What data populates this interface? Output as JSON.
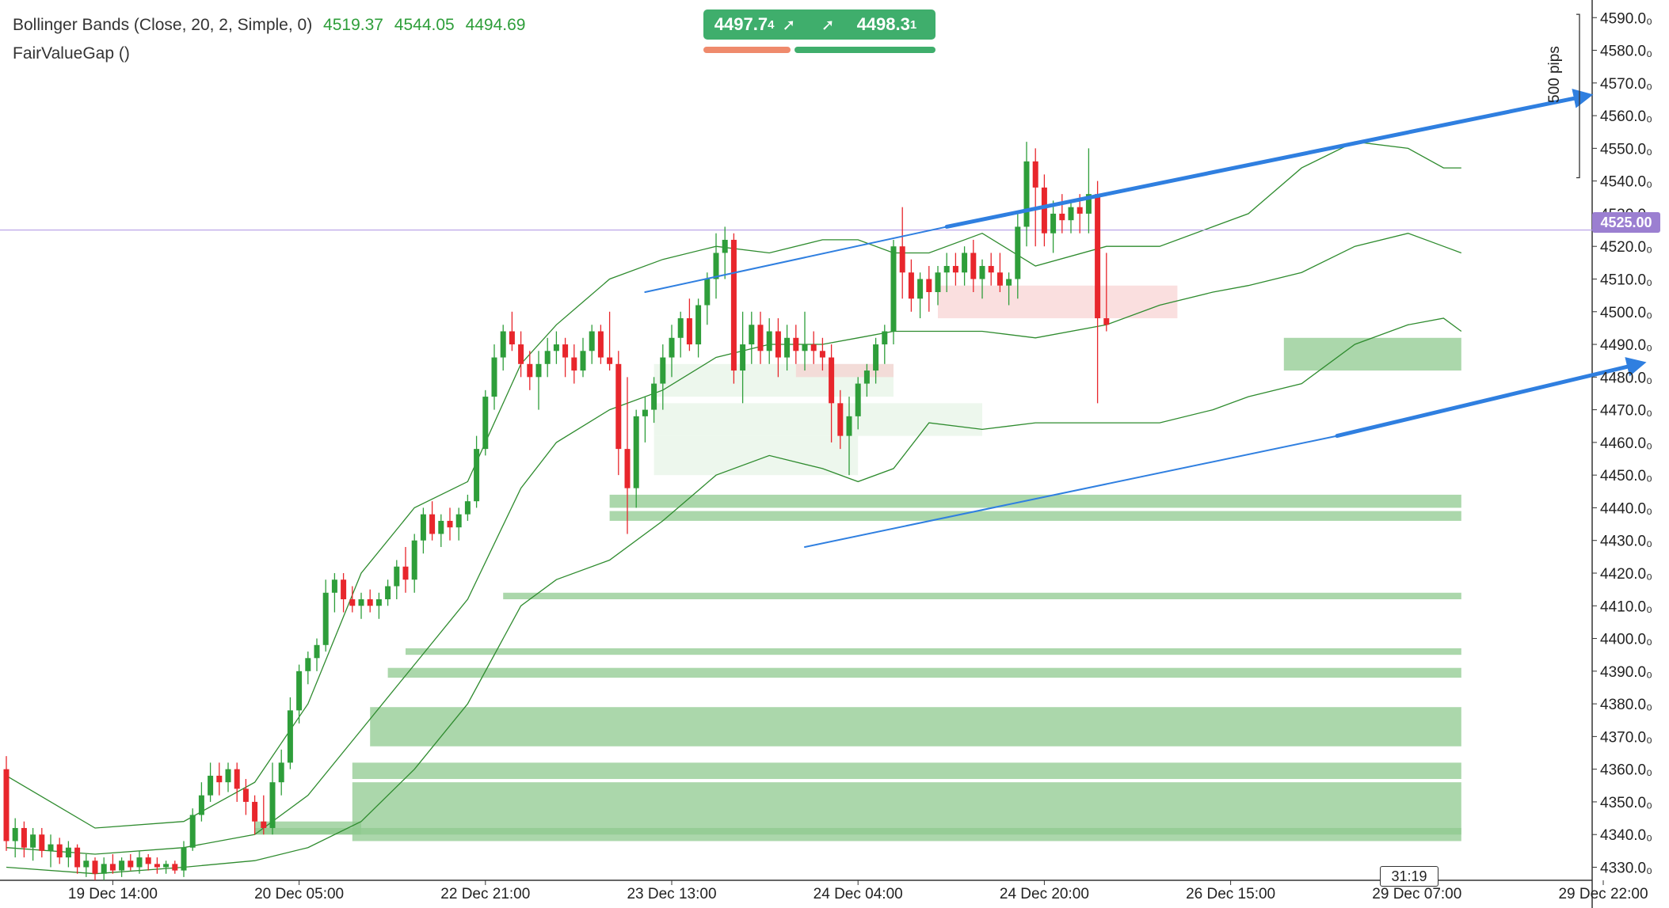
{
  "legend": {
    "bollinger": {
      "label": "Bollinger Bands (Close, 20, 2, Simple, 0)",
      "v1": "4519.37",
      "v2": "4544.05",
      "v3": "4494.69"
    },
    "fvg": {
      "label": "FairValueGap ()"
    }
  },
  "trade": {
    "sell_price": "4497.7",
    "sell_sub": "4",
    "buy_price": "4498.3",
    "buy_sub": "1",
    "arrow": "➚"
  },
  "current_price_label": "4525.00",
  "timer": "31:19",
  "pips_label": "500 pips",
  "colors": {
    "up": "#2e9e3a",
    "down": "#e8262c",
    "band": "#2e8b2e",
    "trend": "#2f7fe0",
    "fvg_green": "#8fc98f",
    "fvg_red": "#f6c9c9",
    "price_line": "#b69ee6"
  },
  "chart_data": {
    "type": "candlestick",
    "ylim": [
      4326,
      4592
    ],
    "y_ticks": [
      {
        "v": 4590,
        "label": "4590.0₀"
      },
      {
        "v": 4580,
        "label": "4580.0₀"
      },
      {
        "v": 4570,
        "label": "4570.0₀"
      },
      {
        "v": 4560,
        "label": "4560.0₀"
      },
      {
        "v": 4550,
        "label": "4550.0₀"
      },
      {
        "v": 4540,
        "label": "4540.0₀"
      },
      {
        "v": 4530,
        "label": "4530.0₀"
      },
      {
        "v": 4520,
        "label": "4520.0₀"
      },
      {
        "v": 4510,
        "label": "4510.0₀"
      },
      {
        "v": 4500,
        "label": "4500.0₀"
      },
      {
        "v": 4490,
        "label": "4490.0₀"
      },
      {
        "v": 4480,
        "label": "4480.0₀"
      },
      {
        "v": 4470,
        "label": "4470.0₀"
      },
      {
        "v": 4460,
        "label": "4460.0₀"
      },
      {
        "v": 4450,
        "label": "4450.0₀"
      },
      {
        "v": 4440,
        "label": "4440.0₀"
      },
      {
        "v": 4430,
        "label": "4430.0₀"
      },
      {
        "v": 4420,
        "label": "4420.0₀"
      },
      {
        "v": 4410,
        "label": "4410.0₀"
      },
      {
        "v": 4400,
        "label": "4400.0₀"
      },
      {
        "v": 4390,
        "label": "4390.0₀"
      },
      {
        "v": 4380,
        "label": "4380.0₀"
      },
      {
        "v": 4370,
        "label": "4370.0₀"
      },
      {
        "v": 4360,
        "label": "4360.0₀"
      },
      {
        "v": 4350,
        "label": "4350.0₀"
      },
      {
        "v": 4340,
        "label": "4340.0₀"
      },
      {
        "v": 4330,
        "label": "4330.0₀"
      }
    ],
    "x_ticks": [
      {
        "i": 12,
        "label": "19 Dec 14:00"
      },
      {
        "i": 33,
        "label": "20 Dec 05:00"
      },
      {
        "i": 54,
        "label": "22 Dec 21:00"
      },
      {
        "i": 75,
        "label": "23 Dec 13:00"
      },
      {
        "i": 96,
        "label": "24 Dec 04:00"
      },
      {
        "i": 117,
        "label": "24 Dec 20:00"
      },
      {
        "i": 138,
        "label": "26 Dec 15:00"
      },
      {
        "i": 159,
        "label": "29 Dec 07:00"
      },
      {
        "i": 180,
        "label": "29 Dec 22:00"
      }
    ],
    "candles": [
      [
        4360,
        4364,
        4335,
        4338
      ],
      [
        4338,
        4345,
        4333,
        4342
      ],
      [
        4342,
        4344,
        4333,
        4336
      ],
      [
        4336,
        4342,
        4332,
        4340
      ],
      [
        4340,
        4342,
        4333,
        4335
      ],
      [
        4335,
        4340,
        4330,
        4337
      ],
      [
        4337,
        4339,
        4331,
        4333
      ],
      [
        4333,
        4338,
        4330,
        4336
      ],
      [
        4336,
        4337,
        4328,
        4330
      ],
      [
        4330,
        4334,
        4327,
        4332
      ],
      [
        4332,
        4333,
        4326,
        4328
      ],
      [
        4328,
        4333,
        4326,
        4331
      ],
      [
        4331,
        4334,
        4328,
        4329
      ],
      [
        4329,
        4333,
        4327,
        4332
      ],
      [
        4332,
        4334,
        4329,
        4330
      ],
      [
        4330,
        4335,
        4328,
        4333
      ],
      [
        4333,
        4334,
        4329,
        4331
      ],
      [
        4331,
        4333,
        4328,
        4330
      ],
      [
        4330,
        4332,
        4328,
        4331
      ],
      [
        4331,
        4332,
        4328,
        4329
      ],
      [
        4329,
        4338,
        4327,
        4336
      ],
      [
        4336,
        4348,
        4335,
        4346
      ],
      [
        4346,
        4356,
        4344,
        4352
      ],
      [
        4352,
        4362,
        4350,
        4358
      ],
      [
        4358,
        4362,
        4352,
        4356
      ],
      [
        4356,
        4362,
        4353,
        4360
      ],
      [
        4360,
        4362,
        4350,
        4354
      ],
      [
        4354,
        4357,
        4346,
        4350
      ],
      [
        4350,
        4352,
        4340,
        4344
      ],
      [
        4344,
        4352,
        4340,
        4342
      ],
      [
        4342,
        4362,
        4340,
        4356
      ],
      [
        4356,
        4366,
        4352,
        4362
      ],
      [
        4362,
        4382,
        4360,
        4378
      ],
      [
        4378,
        4392,
        4374,
        4390
      ],
      [
        4390,
        4396,
        4386,
        4394
      ],
      [
        4394,
        4400,
        4390,
        4398
      ],
      [
        4398,
        4418,
        4396,
        4414
      ],
      [
        4414,
        4420,
        4408,
        4418
      ],
      [
        4418,
        4420,
        4408,
        4412
      ],
      [
        4412,
        4416,
        4408,
        4410
      ],
      [
        4410,
        4414,
        4406,
        4412
      ],
      [
        4412,
        4415,
        4408,
        4410
      ],
      [
        4410,
        4414,
        4406,
        4412
      ],
      [
        4412,
        4418,
        4410,
        4416
      ],
      [
        4416,
        4424,
        4412,
        4422
      ],
      [
        4422,
        4428,
        4414,
        4418
      ],
      [
        4418,
        4432,
        4414,
        4430
      ],
      [
        4430,
        4440,
        4426,
        4438
      ],
      [
        4438,
        4442,
        4430,
        4432
      ],
      [
        4432,
        4438,
        4428,
        4436
      ],
      [
        4436,
        4440,
        4430,
        4434
      ],
      [
        4434,
        4440,
        4430,
        4438
      ],
      [
        4438,
        4444,
        4436,
        4442
      ],
      [
        4442,
        4462,
        4440,
        4458
      ],
      [
        4458,
        4476,
        4456,
        4474
      ],
      [
        4474,
        4490,
        4470,
        4486
      ],
      [
        4486,
        4496,
        4482,
        4494
      ],
      [
        4494,
        4500,
        4488,
        4490
      ],
      [
        4490,
        4494,
        4480,
        4484
      ],
      [
        4484,
        4488,
        4476,
        4480
      ],
      [
        4480,
        4488,
        4470,
        4484
      ],
      [
        4484,
        4492,
        4480,
        4488
      ],
      [
        4488,
        4494,
        4484,
        4490
      ],
      [
        4490,
        4492,
        4480,
        4486
      ],
      [
        4486,
        4490,
        4478,
        4482
      ],
      [
        4482,
        4492,
        4480,
        4488
      ],
      [
        4488,
        4496,
        4484,
        4494
      ],
      [
        4494,
        4496,
        4484,
        4486
      ],
      [
        4486,
        4500,
        4482,
        4484
      ],
      [
        4484,
        4488,
        4450,
        4458
      ],
      [
        4458,
        4480,
        4432,
        4446
      ],
      [
        4446,
        4470,
        4440,
        4468
      ],
      [
        4468,
        4474,
        4460,
        4470
      ],
      [
        4470,
        4480,
        4466,
        4478
      ],
      [
        4478,
        4490,
        4470,
        4486
      ],
      [
        4486,
        4496,
        4480,
        4492
      ],
      [
        4492,
        4500,
        4486,
        4498
      ],
      [
        4498,
        4504,
        4488,
        4490
      ],
      [
        4490,
        4504,
        4486,
        4502
      ],
      [
        4502,
        4512,
        4496,
        4510
      ],
      [
        4510,
        4524,
        4504,
        4518
      ],
      [
        4518,
        4526,
        4510,
        4522
      ],
      [
        4522,
        4524,
        4478,
        4482
      ],
      [
        4482,
        4500,
        4472,
        4490
      ],
      [
        4490,
        4500,
        4484,
        4496
      ],
      [
        4496,
        4500,
        4484,
        4488
      ],
      [
        4488,
        4498,
        4484,
        4494
      ],
      [
        4494,
        4498,
        4480,
        4486
      ],
      [
        4486,
        4496,
        4482,
        4492
      ],
      [
        4492,
        4496,
        4484,
        4488
      ],
      [
        4488,
        4500,
        4482,
        4490
      ],
      [
        4490,
        4494,
        4484,
        4488
      ],
      [
        4488,
        4492,
        4482,
        4486
      ],
      [
        4486,
        4490,
        4460,
        4472
      ],
      [
        4472,
        4476,
        4458,
        4462
      ],
      [
        4462,
        4474,
        4450,
        4468
      ],
      [
        4468,
        4480,
        4464,
        4478
      ],
      [
        4478,
        4484,
        4474,
        4482
      ],
      [
        4482,
        4492,
        4478,
        4490
      ],
      [
        4490,
        4496,
        4484,
        4494
      ],
      [
        4494,
        4522,
        4490,
        4520
      ],
      [
        4520,
        4532,
        4504,
        4512
      ],
      [
        4512,
        4516,
        4500,
        4504
      ],
      [
        4504,
        4512,
        4498,
        4510
      ],
      [
        4510,
        4514,
        4500,
        4506
      ],
      [
        4506,
        4514,
        4502,
        4512
      ],
      [
        4512,
        4518,
        4506,
        4514
      ],
      [
        4514,
        4518,
        4508,
        4512
      ],
      [
        4512,
        4520,
        4508,
        4518
      ],
      [
        4518,
        4522,
        4506,
        4510
      ],
      [
        4510,
        4516,
        4504,
        4514
      ],
      [
        4514,
        4518,
        4508,
        4512
      ],
      [
        4512,
        4518,
        4506,
        4508
      ],
      [
        4508,
        4512,
        4502,
        4510
      ],
      [
        4510,
        4530,
        4504,
        4526
      ],
      [
        4526,
        4552,
        4520,
        4546
      ],
      [
        4546,
        4550,
        4520,
        4538
      ],
      [
        4538,
        4542,
        4520,
        4524
      ],
      [
        4524,
        4534,
        4518,
        4530
      ],
      [
        4530,
        4536,
        4524,
        4528
      ],
      [
        4528,
        4534,
        4524,
        4532
      ],
      [
        4532,
        4536,
        4524,
        4530
      ],
      [
        4530,
        4550,
        4524,
        4536
      ],
      [
        4536,
        4540,
        4472,
        4498
      ],
      [
        4498,
        4518,
        4494,
        4496
      ]
    ],
    "bands": {
      "upper": [
        [
          0,
          4358
        ],
        [
          10,
          4342
        ],
        [
          20,
          4344
        ],
        [
          28,
          4356
        ],
        [
          34,
          4380
        ],
        [
          40,
          4420
        ],
        [
          46,
          4440
        ],
        [
          52,
          4448
        ],
        [
          58,
          4484
        ],
        [
          62,
          4496
        ],
        [
          68,
          4510
        ],
        [
          74,
          4516
        ],
        [
          80,
          4520
        ],
        [
          86,
          4518
        ],
        [
          92,
          4522
        ],
        [
          96,
          4522
        ],
        [
          100,
          4518
        ],
        [
          104,
          4518
        ],
        [
          110,
          4524
        ],
        [
          116,
          4514
        ],
        [
          124,
          4520
        ],
        [
          130,
          4520
        ],
        [
          136,
          4526
        ],
        [
          140,
          4530
        ],
        [
          146,
          4544
        ],
        [
          152,
          4552
        ],
        [
          158,
          4550
        ],
        [
          162,
          4544
        ],
        [
          164,
          4544
        ]
      ],
      "middle": [
        [
          0,
          4336
        ],
        [
          10,
          4334
        ],
        [
          20,
          4336
        ],
        [
          28,
          4340
        ],
        [
          34,
          4352
        ],
        [
          40,
          4372
        ],
        [
          46,
          4392
        ],
        [
          52,
          4412
        ],
        [
          58,
          4446
        ],
        [
          62,
          4460
        ],
        [
          68,
          4470
        ],
        [
          74,
          4476
        ],
        [
          80,
          4486
        ],
        [
          86,
          4490
        ],
        [
          92,
          4490
        ],
        [
          96,
          4492
        ],
        [
          100,
          4494
        ],
        [
          104,
          4494
        ],
        [
          110,
          4494
        ],
        [
          116,
          4492
        ],
        [
          124,
          4496
        ],
        [
          130,
          4502
        ],
        [
          136,
          4506
        ],
        [
          140,
          4508
        ],
        [
          146,
          4512
        ],
        [
          152,
          4520
        ],
        [
          158,
          4524
        ],
        [
          162,
          4520
        ],
        [
          164,
          4518
        ]
      ],
      "lower": [
        [
          0,
          4330
        ],
        [
          10,
          4328
        ],
        [
          20,
          4330
        ],
        [
          28,
          4332
        ],
        [
          34,
          4336
        ],
        [
          40,
          4344
        ],
        [
          46,
          4360
        ],
        [
          52,
          4380
        ],
        [
          58,
          4410
        ],
        [
          62,
          4418
        ],
        [
          68,
          4424
        ],
        [
          74,
          4436
        ],
        [
          80,
          4450
        ],
        [
          86,
          4456
        ],
        [
          92,
          4452
        ],
        [
          96,
          4448
        ],
        [
          100,
          4452
        ],
        [
          104,
          4466
        ],
        [
          110,
          4464
        ],
        [
          116,
          4466
        ],
        [
          124,
          4466
        ],
        [
          130,
          4466
        ],
        [
          136,
          4470
        ],
        [
          140,
          4474
        ],
        [
          146,
          4478
        ],
        [
          152,
          4490
        ],
        [
          158,
          4496
        ],
        [
          162,
          4498
        ],
        [
          164,
          4494
        ]
      ]
    },
    "fvg_zones": [
      {
        "from": 144,
        "to": 164,
        "top": 4492,
        "bottom": 4482,
        "color": "green"
      },
      {
        "from": 68,
        "to": 164,
        "top": 4444,
        "bottom": 4440,
        "color": "green"
      },
      {
        "from": 68,
        "to": 164,
        "top": 4439,
        "bottom": 4436,
        "color": "green"
      },
      {
        "from": 56,
        "to": 164,
        "top": 4414,
        "bottom": 4412,
        "color": "green"
      },
      {
        "from": 45,
        "to": 164,
        "top": 4397,
        "bottom": 4395,
        "color": "green"
      },
      {
        "from": 43,
        "to": 164,
        "top": 4391,
        "bottom": 4388,
        "color": "green"
      },
      {
        "from": 41,
        "to": 164,
        "top": 4379,
        "bottom": 4367,
        "color": "green"
      },
      {
        "from": 39,
        "to": 164,
        "top": 4362,
        "bottom": 4357,
        "color": "green"
      },
      {
        "from": 39,
        "to": 164,
        "top": 4356,
        "bottom": 4338,
        "color": "green"
      },
      {
        "from": 28,
        "to": 164,
        "top": 4342,
        "bottom": 4340,
        "color": "green"
      },
      {
        "from": 28,
        "to": 40,
        "top": 4344,
        "bottom": 4340,
        "color": "green"
      },
      {
        "from": 73,
        "to": 110,
        "top": 4472,
        "bottom": 4462,
        "color": "lightgreen"
      },
      {
        "from": 73,
        "to": 96,
        "top": 4462,
        "bottom": 4450,
        "color": "lightgreen"
      },
      {
        "from": 73,
        "to": 100,
        "top": 4484,
        "bottom": 4474,
        "color": "lightgreen"
      },
      {
        "from": 105,
        "to": 132,
        "top": 4508,
        "bottom": 4498,
        "color": "red"
      },
      {
        "from": 89,
        "to": 100,
        "top": 4484,
        "bottom": 4480,
        "color": "red"
      }
    ],
    "trendlines": [
      {
        "x1": 72,
        "y1": 4506,
        "x2": 106,
        "y2": 4526,
        "width": 2
      },
      {
        "x1": 106,
        "y1": 4526,
        "x2": 178,
        "y2": 4566,
        "width": 5,
        "arrow": true
      },
      {
        "x1": 90,
        "y1": 4428,
        "x2": 150,
        "y2": 4462,
        "width": 2
      },
      {
        "x1": 150,
        "y1": 4462,
        "x2": 184,
        "y2": 4484,
        "width": 5,
        "arrow": true
      }
    ],
    "price_line": 4525.0,
    "pips_range": [
      4541,
      4591
    ]
  }
}
